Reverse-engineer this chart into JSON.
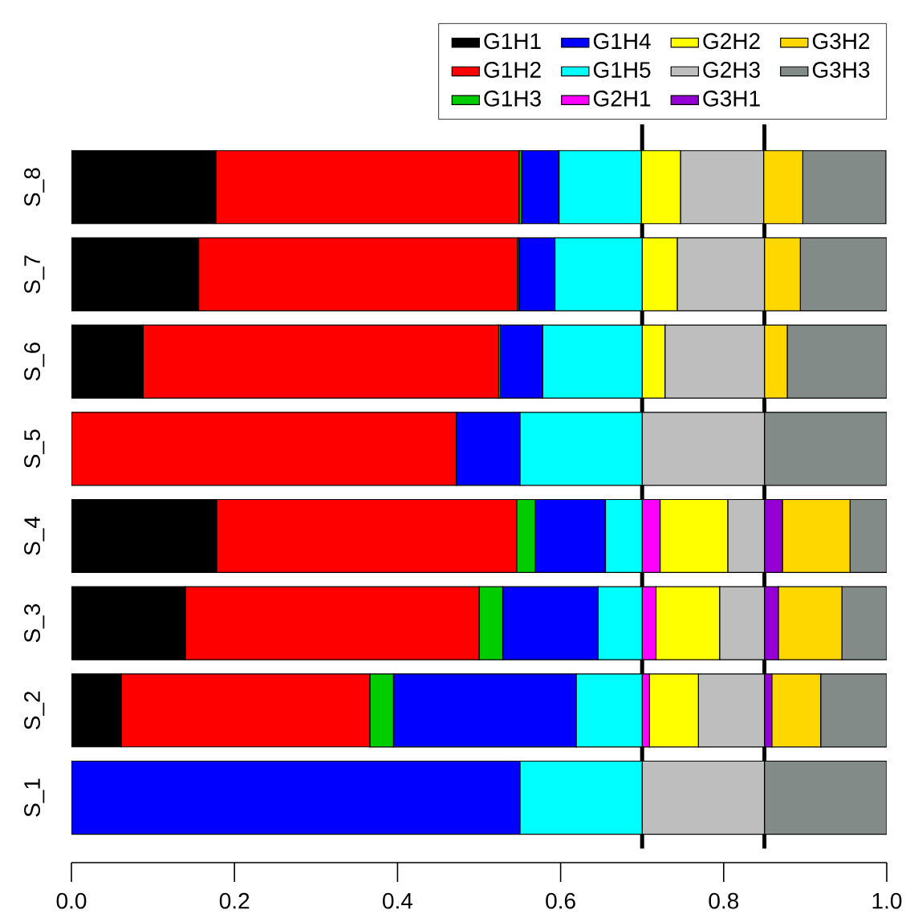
{
  "chart_data": {
    "type": "bar",
    "orientation": "horizontal",
    "stacked": true,
    "legend": "top right",
    "categories": [
      "S_8",
      "S_7",
      "S_6",
      "S_5",
      "S_4",
      "S_3",
      "S_2",
      "S_1"
    ],
    "xlim": [
      0,
      1
    ],
    "xticks": [
      {
        "value": 0,
        "label": "0.0"
      },
      {
        "value": 0.2,
        "label": "0.2"
      },
      {
        "value": 0.4,
        "label": "0.4"
      },
      {
        "value": 0.6,
        "label": "0.6"
      },
      {
        "value": 0.8,
        "label": "0.8"
      },
      {
        "value": 1,
        "label": "1.0"
      }
    ],
    "ref_lines": [
      {
        "axis": "x",
        "value": 0.7,
        "color": "#000000"
      },
      {
        "axis": "x",
        "value": 0.85,
        "color": "#000000"
      }
    ],
    "series": [
      {
        "name": "G1H1",
        "color": "#000000",
        "values": [
          0.177,
          0.156,
          0.088,
          0,
          0.178,
          0.14,
          0.061,
          0
        ]
      },
      {
        "name": "G1H2",
        "color": "#ff0000",
        "values": [
          0.372,
          0.391,
          0.436,
          0.472,
          0.368,
          0.36,
          0.305,
          0
        ]
      },
      {
        "name": "G1H3",
        "color": "#00cd00",
        "values": [
          0.003,
          0.002,
          0.002,
          0,
          0.023,
          0.029,
          0.029,
          0
        ]
      },
      {
        "name": "G1H4",
        "color": "#0000ff",
        "values": [
          0.046,
          0.044,
          0.052,
          0.078,
          0.086,
          0.117,
          0.224,
          0.55
        ]
      },
      {
        "name": "G1H5",
        "color": "#00ffff",
        "values": [
          0.101,
          0.107,
          0.122,
          0.15,
          0.045,
          0.054,
          0.081,
          0.15
        ]
      },
      {
        "name": "G2H1",
        "color": "#ff00ff",
        "values": [
          0,
          0,
          0,
          0,
          0.022,
          0.017,
          0.009,
          0
        ]
      },
      {
        "name": "G2H2",
        "color": "#ffff00",
        "values": [
          0.048,
          0.043,
          0.028,
          0,
          0.083,
          0.078,
          0.06,
          0
        ]
      },
      {
        "name": "G2H3",
        "color": "#bebebe",
        "values": [
          0.102,
          0.107,
          0.122,
          0.15,
          0.045,
          0.055,
          0.081,
          0.15
        ]
      },
      {
        "name": "G3H1",
        "color": "#9400d3",
        "values": [
          0,
          0,
          0,
          0,
          0.022,
          0.017,
          0.009,
          0
        ]
      },
      {
        "name": "G3H2",
        "color": "#ffd700",
        "values": [
          0.048,
          0.044,
          0.028,
          0,
          0.083,
          0.078,
          0.06,
          0
        ]
      },
      {
        "name": "G3H3",
        "color": "#838b89",
        "values": [
          0.102,
          0.106,
          0.122,
          0.15,
          0.045,
          0.055,
          0.081,
          0.15
        ]
      }
    ]
  }
}
